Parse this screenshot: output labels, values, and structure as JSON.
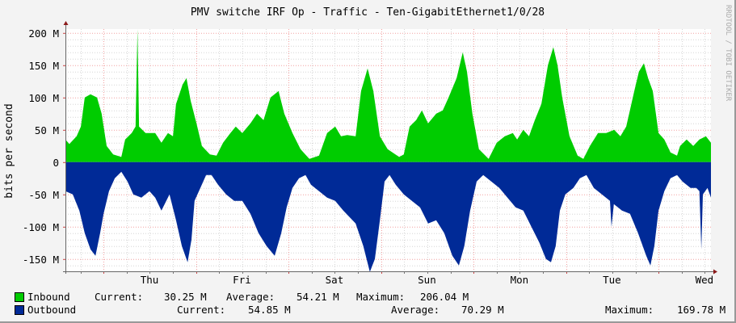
{
  "chart_data": {
    "type": "area",
    "title": "PMV switche IRF Op - Traffic - Ten-GigabitEthernet1/0/28",
    "ylabel": "bits per second",
    "xlabel": "",
    "watermark": "RRDTOOL / TOBI OETIKER",
    "x_unit": "hours since start of graph",
    "xlim": [
      0,
      167.5
    ],
    "ylim": [
      -169,
      206
    ],
    "y_ticks": [
      {
        "value": 200,
        "label": "200 M"
      },
      {
        "value": 150,
        "label": "150 M"
      },
      {
        "value": 100,
        "label": "100 M"
      },
      {
        "value": 50,
        "label": "50 M"
      },
      {
        "value": 0,
        "label": "0"
      },
      {
        "value": -50,
        "label": "-50 M"
      },
      {
        "value": -100,
        "label": "-100 M"
      },
      {
        "value": -150,
        "label": "-150 M"
      }
    ],
    "x_ticks": [
      {
        "value": 21.8,
        "label": "Thu"
      },
      {
        "value": 45.8,
        "label": "Fri"
      },
      {
        "value": 69.8,
        "label": "Sat"
      },
      {
        "value": 93.8,
        "label": "Sun"
      },
      {
        "value": 117.8,
        "label": "Mon"
      },
      {
        "value": 141.8,
        "label": "Tue"
      },
      {
        "value": 165.8,
        "label": "Wed"
      }
    ],
    "major_grid_hours": [
      9.9,
      33.9,
      57.9,
      81.9,
      105.9,
      129.9,
      153.9
    ],
    "minor_grid_step_hours": 6,
    "major_grid_y_step": 50,
    "minor_grid_y_step": 10,
    "grid": true,
    "series": [
      {
        "name": "Inbound",
        "color": "#00cc00",
        "unit": "Mbit/s",
        "points": [
          [
            0,
            35
          ],
          [
            1.0,
            28
          ],
          [
            2.9,
            40
          ],
          [
            4.0,
            55
          ],
          [
            5.0,
            100
          ],
          [
            6.5,
            105
          ],
          [
            8.2,
            100
          ],
          [
            9.4,
            75
          ],
          [
            10.7,
            25
          ],
          [
            12.4,
            12
          ],
          [
            14.5,
            8
          ],
          [
            15.5,
            35
          ],
          [
            17.2,
            45
          ],
          [
            18.2,
            55
          ],
          [
            18.7,
            206
          ],
          [
            19.1,
            55
          ],
          [
            20.8,
            45
          ],
          [
            23.3,
            45
          ],
          [
            24.9,
            30
          ],
          [
            26.6,
            45
          ],
          [
            27.9,
            40
          ],
          [
            28.7,
            90
          ],
          [
            30.4,
            120
          ],
          [
            31.4,
            130
          ],
          [
            32.5,
            95
          ],
          [
            34.0,
            60
          ],
          [
            35.4,
            25
          ],
          [
            37.5,
            12
          ],
          [
            39.2,
            10
          ],
          [
            40.9,
            30
          ],
          [
            42.8,
            45
          ],
          [
            44.2,
            55
          ],
          [
            45.9,
            45
          ],
          [
            48.0,
            60
          ],
          [
            49.7,
            75
          ],
          [
            51.4,
            65
          ],
          [
            53.2,
            100
          ],
          [
            55.3,
            110
          ],
          [
            56.8,
            75
          ],
          [
            58.9,
            45
          ],
          [
            61.0,
            20
          ],
          [
            63.3,
            5
          ],
          [
            65.8,
            10
          ],
          [
            67.9,
            45
          ],
          [
            70.0,
            55
          ],
          [
            71.5,
            40
          ],
          [
            73.1,
            42
          ],
          [
            75.3,
            40
          ],
          [
            76.7,
            110
          ],
          [
            78.4,
            145
          ],
          [
            79.9,
            110
          ],
          [
            81.6,
            40
          ],
          [
            83.6,
            20
          ],
          [
            86.6,
            8
          ],
          [
            87.8,
            12
          ],
          [
            89.3,
            55
          ],
          [
            91.0,
            65
          ],
          [
            92.5,
            80
          ],
          [
            94.1,
            60
          ],
          [
            96.2,
            75
          ],
          [
            97.9,
            80
          ],
          [
            99.4,
            100
          ],
          [
            101.5,
            130
          ],
          [
            103.1,
            170
          ],
          [
            104.2,
            140
          ],
          [
            105.6,
            75
          ],
          [
            107.3,
            20
          ],
          [
            109.8,
            5
          ],
          [
            111.9,
            30
          ],
          [
            114.0,
            40
          ],
          [
            116.1,
            45
          ],
          [
            117.2,
            35
          ],
          [
            118.8,
            50
          ],
          [
            120.3,
            40
          ],
          [
            121.8,
            65
          ],
          [
            123.5,
            90
          ],
          [
            125.2,
            150
          ],
          [
            126.6,
            178
          ],
          [
            127.7,
            150
          ],
          [
            128.9,
            100
          ],
          [
            130.8,
            40
          ],
          [
            132.9,
            10
          ],
          [
            134.4,
            5
          ],
          [
            136.1,
            25
          ],
          [
            138.2,
            45
          ],
          [
            140.3,
            45
          ],
          [
            142.4,
            50
          ],
          [
            144.0,
            40
          ],
          [
            145.5,
            55
          ],
          [
            147.6,
            110
          ],
          [
            148.8,
            140
          ],
          [
            150.1,
            153
          ],
          [
            151.2,
            130
          ],
          [
            152.4,
            110
          ],
          [
            153.9,
            45
          ],
          [
            155.4,
            35
          ],
          [
            157.0,
            15
          ],
          [
            158.7,
            10
          ],
          [
            159.5,
            25
          ],
          [
            161.2,
            35
          ],
          [
            162.9,
            25
          ],
          [
            164.5,
            35
          ],
          [
            166.2,
            40
          ],
          [
            167.5,
            30
          ]
        ]
      },
      {
        "name": "Outbound",
        "color": "#002a97",
        "unit": "Mbit/s",
        "points": [
          [
            0,
            -45
          ],
          [
            1.9,
            -50
          ],
          [
            3.6,
            -75
          ],
          [
            5.0,
            -110
          ],
          [
            6.5,
            -135
          ],
          [
            7.8,
            -145
          ],
          [
            9.0,
            -110
          ],
          [
            9.9,
            -80
          ],
          [
            11.3,
            -45
          ],
          [
            12.8,
            -25
          ],
          [
            14.5,
            -15
          ],
          [
            16.1,
            -30
          ],
          [
            17.6,
            -50
          ],
          [
            19.7,
            -55
          ],
          [
            21.8,
            -45
          ],
          [
            23.3,
            -55
          ],
          [
            24.9,
            -75
          ],
          [
            27.0,
            -50
          ],
          [
            28.7,
            -90
          ],
          [
            30.2,
            -130
          ],
          [
            31.7,
            -155
          ],
          [
            32.7,
            -120
          ],
          [
            33.5,
            -60
          ],
          [
            35.0,
            -40
          ],
          [
            36.5,
            -20
          ],
          [
            37.9,
            -20
          ],
          [
            39.6,
            -35
          ],
          [
            41.7,
            -50
          ],
          [
            43.8,
            -60
          ],
          [
            45.9,
            -60
          ],
          [
            48.0,
            -80
          ],
          [
            50.1,
            -110
          ],
          [
            52.2,
            -130
          ],
          [
            54.3,
            -145
          ],
          [
            56.0,
            -110
          ],
          [
            57.4,
            -70
          ],
          [
            58.9,
            -40
          ],
          [
            60.6,
            -25
          ],
          [
            62.3,
            -20
          ],
          [
            63.7,
            -35
          ],
          [
            65.8,
            -45
          ],
          [
            67.9,
            -55
          ],
          [
            70.0,
            -60
          ],
          [
            72.1,
            -75
          ],
          [
            75.3,
            -95
          ],
          [
            77.3,
            -130
          ],
          [
            79.0,
            -170
          ],
          [
            80.3,
            -150
          ],
          [
            81.6,
            -90
          ],
          [
            82.8,
            -30
          ],
          [
            84.1,
            -20
          ],
          [
            85.7,
            -35
          ],
          [
            87.8,
            -50
          ],
          [
            89.9,
            -60
          ],
          [
            92.0,
            -70
          ],
          [
            94.1,
            -95
          ],
          [
            96.2,
            -90
          ],
          [
            98.3,
            -110
          ],
          [
            100.4,
            -145
          ],
          [
            102.1,
            -160
          ],
          [
            103.5,
            -130
          ],
          [
            105.0,
            -75
          ],
          [
            106.7,
            -30
          ],
          [
            108.4,
            -20
          ],
          [
            110.5,
            -30
          ],
          [
            112.6,
            -40
          ],
          [
            114.7,
            -55
          ],
          [
            116.8,
            -70
          ],
          [
            118.8,
            -75
          ],
          [
            120.9,
            -100
          ],
          [
            123.0,
            -125
          ],
          [
            124.7,
            -150
          ],
          [
            126.0,
            -155
          ],
          [
            127.2,
            -130
          ],
          [
            128.3,
            -75
          ],
          [
            129.7,
            -50
          ],
          [
            131.8,
            -40
          ],
          [
            133.5,
            -25
          ],
          [
            135.2,
            -20
          ],
          [
            137.1,
            -40
          ],
          [
            139.2,
            -50
          ],
          [
            141.3,
            -60
          ],
          [
            141.7,
            -100
          ],
          [
            142.3,
            -65
          ],
          [
            144.4,
            -75
          ],
          [
            146.5,
            -80
          ],
          [
            148.6,
            -110
          ],
          [
            150.7,
            -145
          ],
          [
            151.8,
            -160
          ],
          [
            152.8,
            -130
          ],
          [
            153.9,
            -75
          ],
          [
            155.4,
            -45
          ],
          [
            157.0,
            -25
          ],
          [
            158.7,
            -20
          ],
          [
            160.1,
            -30
          ],
          [
            162.2,
            -40
          ],
          [
            163.7,
            -40
          ],
          [
            164.5,
            -45
          ],
          [
            165.0,
            -135
          ],
          [
            165.4,
            -50
          ],
          [
            166.6,
            -40
          ],
          [
            167.5,
            -55
          ]
        ]
      }
    ],
    "legend": [
      {
        "name": "Inbound",
        "color": "#00cc00",
        "current_label": "Current:",
        "current": "30.25 M",
        "average_label": "Average:",
        "average": "54.21 M",
        "maximum_label": "Maximum:",
        "maximum": "206.04 M"
      },
      {
        "name": "Outbound",
        "color": "#002a97",
        "current_label": "Current:",
        "current": "54.85 M",
        "average_label": "Average:",
        "average": "70.29 M",
        "maximum_label": "Maximum:",
        "maximum": "169.78 M"
      }
    ]
  }
}
